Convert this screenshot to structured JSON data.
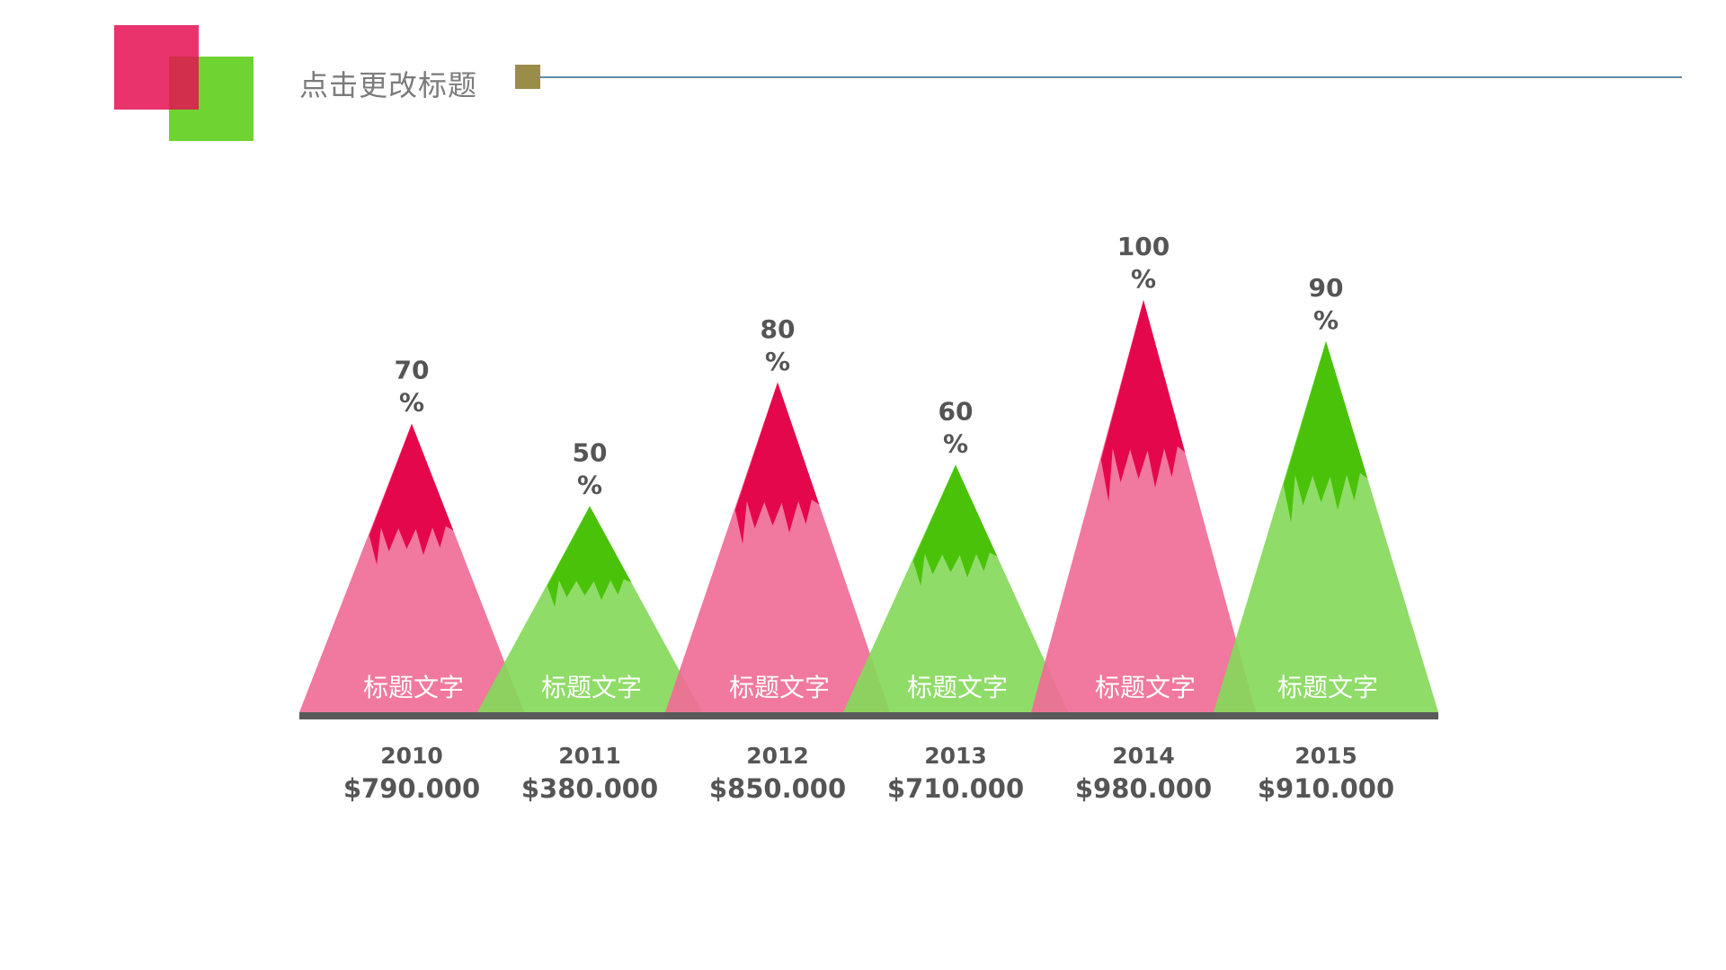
{
  "header": {
    "title": "点击更改标题"
  },
  "colors": {
    "pink_light": "#f06c96",
    "pink_dark": "#e5074c",
    "green_light": "#86d95b",
    "green_dark": "#4ac20a",
    "baseline": "#5a5a5a",
    "text_dark": "#555555",
    "accent_pink": "#e8336d",
    "accent_green": "#6fd432",
    "marker": "#9a8d4a",
    "rule": "#5e8ca8"
  },
  "chart_data": {
    "type": "bar",
    "title": "",
    "xlabel": "",
    "ylabel": "",
    "ylim": [
      0,
      100
    ],
    "categories": [
      "2010",
      "2011",
      "2012",
      "2013",
      "2014",
      "2015"
    ],
    "values": [
      70,
      50,
      80,
      60,
      100,
      90
    ],
    "value_labels": [
      "70\n%",
      "50\n%",
      "80\n%",
      "60\n%",
      "100\n%",
      "90\n%"
    ],
    "amounts": [
      "$790.000",
      "$380.000",
      "$850.000",
      "$710.000",
      "$980.000",
      "$910.000"
    ],
    "bar_labels": [
      "标题文字",
      "标题文字",
      "标题文字",
      "标题文字",
      "标题文字",
      "标题文字"
    ],
    "colors": [
      "pink",
      "green",
      "pink",
      "green",
      "pink",
      "green"
    ]
  }
}
